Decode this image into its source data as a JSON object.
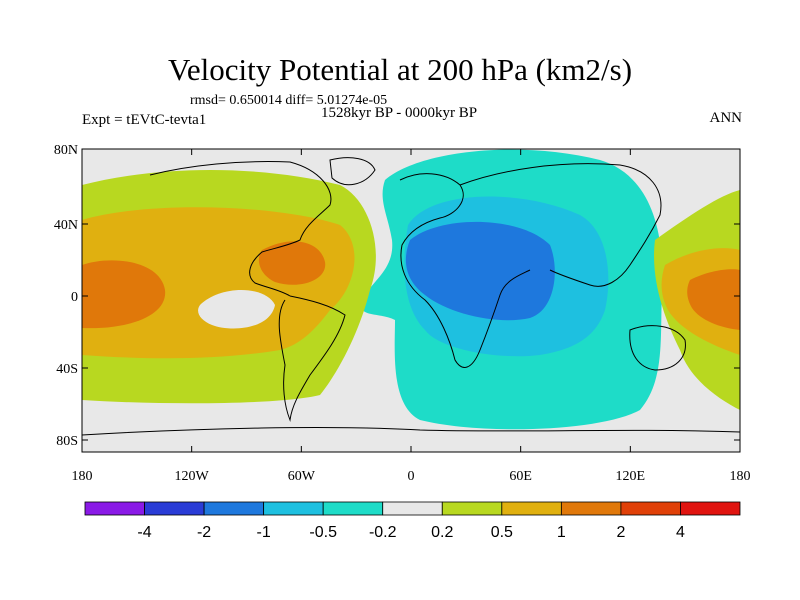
{
  "title": "Velocity Potential at 200 hPa (km2/s)",
  "stats": "rmsd= 0.650014 diff= 5.01274e-05",
  "period": "1528kyr BP - 0000kyr BP",
  "experiment": "Expt = tEVtC-tevta1",
  "season": "ANN",
  "lat_ticks": [
    "80N",
    "40N",
    "0",
    "40S",
    "80S"
  ],
  "lon_ticks": [
    "180",
    "120W",
    "60W",
    "0",
    "60E",
    "120E",
    "180"
  ],
  "colorbar": {
    "labels": [
      "-4",
      "-2",
      "-1",
      "-0.5",
      "-0.2",
      "0.2",
      "0.5",
      "1",
      "2",
      "4"
    ],
    "colors": [
      "#8a1ae6",
      "#2a3cd6",
      "#1e78dd",
      "#1ec0e0",
      "#1edcc8",
      "#e8e8e8",
      "#b8d820",
      "#e0b010",
      "#e0780a",
      "#e04008",
      "#e01410"
    ]
  },
  "colors": {
    "land_outline": "#000000",
    "neutral": "#e8e8e8"
  }
}
